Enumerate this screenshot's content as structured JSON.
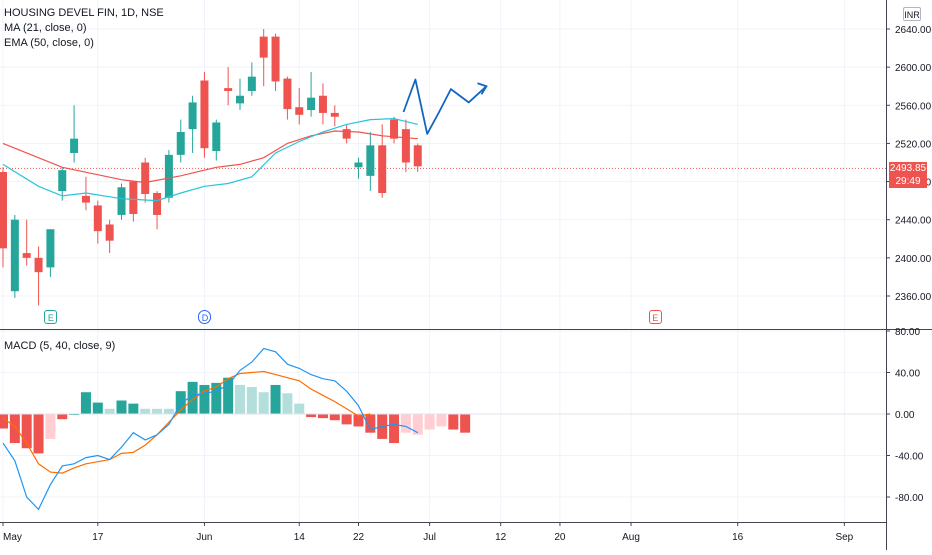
{
  "legend": {
    "symbol": "HOUSING DEVEL FIN, 1D, NSE",
    "ma": "MA (21, close, 0)",
    "ema": "EMA (50, close, 0)",
    "macd": "MACD (5, 40, close, 9)"
  },
  "currency": "INR",
  "last_price_tag": {
    "price": "2493.85",
    "timer": "29:49"
  },
  "events": [
    {
      "label": "E",
      "day": 4
    },
    {
      "label": "D",
      "day": 17
    },
    {
      "label": "E",
      "day": 55
    }
  ],
  "colors": {
    "up": "#26a69a",
    "down": "#ef5350",
    "ma": "#ef5350",
    "ema": "#26c6da",
    "macd": "#2196f3",
    "signal": "#ff6d00",
    "hist_up_strong": "#26a69a",
    "hist_up_weak": "#b2dfdb",
    "hist_down_strong": "#ef5350",
    "hist_down_weak": "#ffcdd2",
    "drawing": "#1565c0",
    "grid": "#f0f3fa",
    "axis_text": "#131722"
  },
  "chart_data": [
    {
      "type": "candlestick",
      "title": "HOUSING DEVEL FIN, 1D, NSE",
      "y_axis": {
        "ticks": [
          "2640.00",
          "2600.00",
          "2560.00",
          "2520.00",
          "2480.00",
          "2440.00",
          "2400.00",
          "2360.00"
        ],
        "range": [
          2330,
          2655
        ]
      },
      "x_axis": {
        "tick_labels": [
          "May",
          "17",
          "Jun",
          "14",
          "22",
          "Jul",
          "12",
          "20",
          "Aug",
          "16",
          "Sep"
        ],
        "tick_days": [
          0,
          8,
          17,
          25,
          30,
          36,
          42,
          47,
          53,
          62,
          71
        ]
      },
      "ohlc": [
        [
          2490,
          2495,
          2390,
          2410
        ],
        [
          2365,
          2445,
          2358,
          2440
        ],
        [
          2405,
          2440,
          2392,
          2400
        ],
        [
          2400,
          2412,
          2350,
          2385
        ],
        [
          2390,
          2430,
          2380,
          2430
        ],
        [
          2470,
          2495,
          2460,
          2492
        ],
        [
          2510,
          2560,
          2500,
          2525
        ],
        [
          2465,
          2485,
          2450,
          2458
        ],
        [
          2455,
          2460,
          2415,
          2428
        ],
        [
          2435,
          2440,
          2405,
          2418
        ],
        [
          2445,
          2478,
          2440,
          2474
        ],
        [
          2480,
          2480,
          2438,
          2446
        ],
        [
          2500,
          2505,
          2458,
          2467
        ],
        [
          2468,
          2470,
          2430,
          2445
        ],
        [
          2463,
          2513,
          2458,
          2508
        ],
        [
          2508,
          2545,
          2500,
          2532
        ],
        [
          2535,
          2570,
          2510,
          2563
        ],
        [
          2586,
          2595,
          2505,
          2515
        ],
        [
          2512,
          2545,
          2502,
          2542
        ],
        [
          2578,
          2600,
          2560,
          2575
        ],
        [
          2562,
          2588,
          2555,
          2570
        ],
        [
          2575,
          2605,
          2570,
          2590
        ],
        [
          2632,
          2640,
          2580,
          2610
        ],
        [
          2632,
          2635,
          2575,
          2585
        ],
        [
          2588,
          2590,
          2545,
          2556
        ],
        [
          2558,
          2578,
          2540,
          2550
        ],
        [
          2555,
          2595,
          2548,
          2568
        ],
        [
          2570,
          2583,
          2540,
          2552
        ],
        [
          2552,
          2560,
          2538,
          2548
        ],
        [
          2535,
          2540,
          2520,
          2525
        ],
        [
          2495,
          2505,
          2483,
          2500
        ],
        [
          2486,
          2532,
          2470,
          2518
        ],
        [
          2518,
          2540,
          2463,
          2468
        ],
        [
          2545,
          2548,
          2520,
          2525
        ],
        [
          2535,
          2545,
          2490,
          2500
        ],
        [
          2518,
          2520,
          2490,
          2496
        ]
      ],
      "ma_21": [
        [
          0,
          2520
        ],
        [
          5,
          2495
        ],
        [
          10,
          2482
        ],
        [
          12,
          2479
        ],
        [
          15,
          2486
        ],
        [
          18,
          2495
        ],
        [
          20,
          2498
        ],
        [
          22,
          2505
        ],
        [
          24,
          2520
        ],
        [
          26,
          2528
        ],
        [
          28,
          2533
        ],
        [
          30,
          2532
        ],
        [
          32,
          2528
        ],
        [
          35,
          2525
        ]
      ],
      "ema_50": [
        [
          0,
          2498
        ],
        [
          3,
          2475
        ],
        [
          5,
          2465
        ],
        [
          7,
          2468
        ],
        [
          10,
          2462
        ],
        [
          13,
          2460
        ],
        [
          15,
          2468
        ],
        [
          17,
          2475
        ],
        [
          19,
          2478
        ],
        [
          21,
          2485
        ],
        [
          23,
          2510
        ],
        [
          25,
          2522
        ],
        [
          27,
          2532
        ],
        [
          29,
          2540
        ],
        [
          31,
          2545
        ],
        [
          33,
          2546
        ],
        [
          35,
          2540
        ]
      ],
      "projection": [
        [
          33.8,
          2553
        ],
        [
          34.8,
          2587
        ],
        [
          35.8,
          2530
        ],
        [
          36.8,
          2553
        ],
        [
          37.8,
          2577
        ],
        [
          39.3,
          2563
        ],
        [
          40.8,
          2580
        ]
      ],
      "last_price": 2493.85
    },
    {
      "type": "macd",
      "title": "MACD (5, 40, close, 9)",
      "y_axis": {
        "ticks": [
          "80.00",
          "40.00",
          "0.00",
          "-40.00",
          "-80.00"
        ],
        "range": [
          -100,
          82
        ]
      },
      "histogram": [
        -14,
        -28,
        -33,
        -38,
        -24,
        -5,
        0,
        21,
        11,
        5,
        13,
        10,
        5,
        5,
        5,
        22,
        31,
        28,
        30,
        35,
        28,
        26,
        21,
        28,
        20,
        10,
        -3,
        -4,
        -6,
        -10,
        -12,
        -18,
        -24,
        -28,
        -18,
        -20,
        -15,
        -12,
        -15,
        -18
      ],
      "hist_weak": [
        false,
        false,
        false,
        false,
        true,
        false,
        false,
        false,
        false,
        true,
        false,
        false,
        true,
        true,
        true,
        false,
        false,
        false,
        false,
        false,
        true,
        true,
        true,
        false,
        true,
        true,
        false,
        false,
        false,
        false,
        false,
        false,
        false,
        false,
        true,
        true,
        true,
        true,
        false,
        false
      ],
      "macd": [
        [
          0,
          -28
        ],
        [
          1,
          -45
        ],
        [
          2,
          -80
        ],
        [
          3,
          -92
        ],
        [
          4,
          -68
        ],
        [
          5,
          -50
        ],
        [
          6,
          -48
        ],
        [
          7,
          -42
        ],
        [
          8,
          -40
        ],
        [
          9,
          -44
        ],
        [
          10,
          -32
        ],
        [
          11,
          -18
        ],
        [
          12,
          -25
        ],
        [
          13,
          -20
        ],
        [
          14,
          -10
        ],
        [
          15,
          10
        ],
        [
          16,
          18
        ],
        [
          17,
          20
        ],
        [
          18,
          22
        ],
        [
          19,
          28
        ],
        [
          20,
          42
        ],
        [
          21,
          50
        ],
        [
          22,
          63
        ],
        [
          23,
          60
        ],
        [
          24,
          48
        ],
        [
          25,
          44
        ],
        [
          26,
          38
        ],
        [
          27,
          34
        ],
        [
          28,
          32
        ],
        [
          29,
          22
        ],
        [
          30,
          8
        ],
        [
          31,
          -15
        ],
        [
          32,
          -12
        ],
        [
          33,
          -10
        ],
        [
          34,
          -12
        ],
        [
          35,
          -18
        ]
      ],
      "signal": [
        [
          0,
          -4
        ],
        [
          1,
          -12
        ],
        [
          2,
          -28
        ],
        [
          3,
          -48
        ],
        [
          4,
          -56
        ],
        [
          5,
          -57
        ],
        [
          6,
          -52
        ],
        [
          7,
          -48
        ],
        [
          8,
          -46
        ],
        [
          9,
          -44
        ],
        [
          10,
          -38
        ],
        [
          11,
          -37
        ],
        [
          12,
          -30
        ],
        [
          13,
          -20
        ],
        [
          14,
          -8
        ],
        [
          15,
          4
        ],
        [
          16,
          14
        ],
        [
          17,
          22
        ],
        [
          18,
          26
        ],
        [
          19,
          34
        ],
        [
          20,
          39
        ],
        [
          21,
          40
        ],
        [
          22,
          41
        ],
        [
          23,
          38
        ],
        [
          24,
          35
        ],
        [
          25,
          32
        ],
        [
          26,
          24
        ],
        [
          27,
          18
        ],
        [
          28,
          12
        ],
        [
          29,
          5
        ],
        [
          30,
          -2
        ],
        [
          31,
          0
        ]
      ]
    }
  ]
}
